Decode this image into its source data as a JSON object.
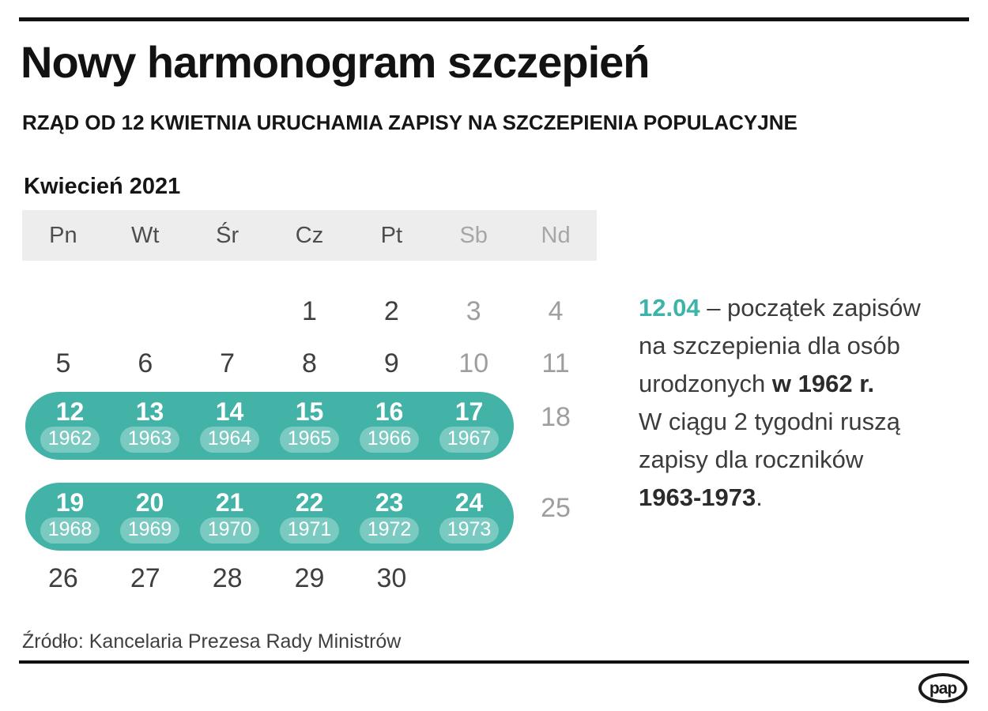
{
  "page": {
    "title": "Nowy harmonogram szczepień",
    "subtitle": "RZĄD OD 12 KWIETNIA URUCHAMIA ZAPISY NA SZCZEPIENIA POPULACYJNE",
    "source": "Źródło: Kancelaria Prezesa Rady Ministrów",
    "logo_label": "pap"
  },
  "colors": {
    "accent_teal": "#42b3a6",
    "year_pill_overlay": "rgba(255,255,255,0.30)",
    "header_band": "#ededed",
    "weekday_text": "#3f3f3f",
    "weekend_text": "#9e9e9e"
  },
  "calendar": {
    "month_label": "Kwiecień 2021",
    "headers": [
      "Pn",
      "Wt",
      "Śr",
      "Cz",
      "Pt",
      "Sb",
      "Nd"
    ],
    "week1": [
      "",
      "",
      "",
      "1",
      "2",
      "3",
      "4"
    ],
    "week2": [
      "5",
      "6",
      "7",
      "8",
      "9",
      "10",
      "11"
    ],
    "week3": {
      "days": [
        "12",
        "13",
        "14",
        "15",
        "16",
        "17"
      ],
      "years": [
        "1962",
        "1963",
        "1964",
        "1965",
        "1966",
        "1967"
      ],
      "next": "18"
    },
    "week4": {
      "days": [
        "19",
        "20",
        "21",
        "22",
        "23",
        "24"
      ],
      "years": [
        "1968",
        "1969",
        "1970",
        "1971",
        "1972",
        "1973"
      ],
      "next": "25"
    },
    "week5": [
      "26",
      "27",
      "28",
      "29",
      "30"
    ]
  },
  "annotation": {
    "highlight_date": "12.04",
    "line1_rest": " – początek zapisów",
    "line2": "na szczepienia dla osób",
    "line3_normal": "urodzonych ",
    "line3_bold": "w 1962 r.",
    "line4": "W ciągu 2 tygodni ruszą",
    "line5": "zapisy dla roczników",
    "line6_bold": "1963-1973",
    "line6_end": "."
  }
}
